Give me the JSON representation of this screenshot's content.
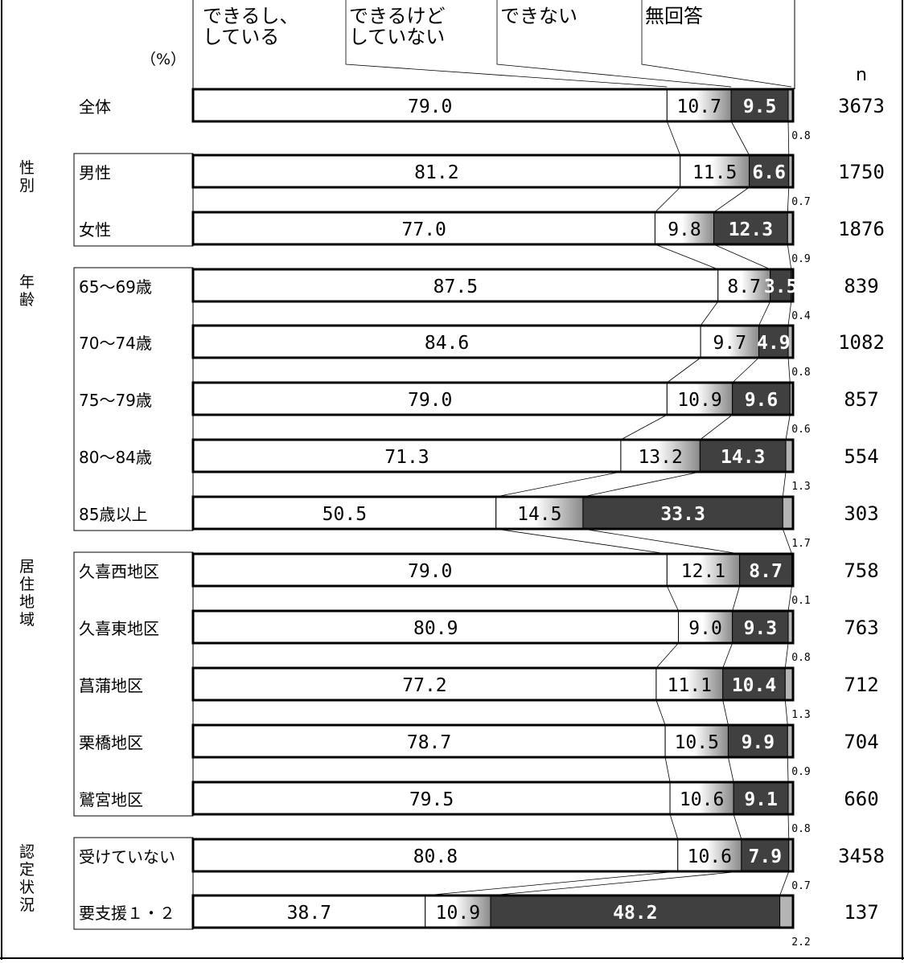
{
  "chart_data": {
    "type": "bar",
    "stacked": true,
    "orientation": "horizontal",
    "unit_label": "（%）",
    "n_header": "n",
    "series": [
      {
        "name": "できるし、\nしている",
        "color": "#ffffff"
      },
      {
        "name": "できるけど\nしていない",
        "color": "#c8c8c8"
      },
      {
        "name": "できない",
        "color": "#404040"
      },
      {
        "name": "無回答",
        "color": "#b4b4b4"
      }
    ],
    "groups": [
      {
        "label": "",
        "rows": [
          0
        ]
      },
      {
        "label": "性別",
        "rows": [
          1,
          2
        ]
      },
      {
        "label": "年齢",
        "rows": [
          3,
          4,
          5,
          6,
          7
        ]
      },
      {
        "label": "居住地域",
        "rows": [
          8,
          9,
          10,
          11,
          12
        ]
      },
      {
        "label": "認定状況",
        "rows": [
          13,
          14
        ]
      }
    ],
    "rows": [
      {
        "label": "全体",
        "n": "3673",
        "values": [
          79.0,
          10.7,
          9.5,
          0.8
        ],
        "value_labels": [
          "79.0",
          "10.7",
          "9.5",
          "0.8"
        ]
      },
      {
        "label": "男性",
        "n": "1750",
        "values": [
          81.2,
          11.5,
          6.6,
          0.7
        ],
        "value_labels": [
          "81.2",
          "11.5",
          "6.6",
          "0.7"
        ]
      },
      {
        "label": "女性",
        "n": "1876",
        "values": [
          77.0,
          9.8,
          12.3,
          0.9
        ],
        "value_labels": [
          "77.0",
          "9.8",
          "12.3",
          "0.9"
        ]
      },
      {
        "label": "65～69歳",
        "n": "839",
        "values": [
          87.5,
          8.7,
          3.5,
          0.4
        ],
        "value_labels": [
          "87.5",
          "8.7",
          "3.5",
          "0.4"
        ]
      },
      {
        "label": "70～74歳",
        "n": "1082",
        "values": [
          84.6,
          9.7,
          4.9,
          0.8
        ],
        "value_labels": [
          "84.6",
          "9.7",
          "4.9",
          "0.8"
        ]
      },
      {
        "label": "75～79歳",
        "n": "857",
        "values": [
          79.0,
          10.9,
          9.6,
          0.6
        ],
        "value_labels": [
          "79.0",
          "10.9",
          "9.6",
          "0.6"
        ]
      },
      {
        "label": "80～84歳",
        "n": "554",
        "values": [
          71.3,
          13.2,
          14.3,
          1.3
        ],
        "value_labels": [
          "71.3",
          "13.2",
          "14.3",
          "1.3"
        ]
      },
      {
        "label": "85歳以上",
        "n": "303",
        "values": [
          50.5,
          14.5,
          33.3,
          1.7
        ],
        "value_labels": [
          "50.5",
          "14.5",
          "33.3",
          "1.7"
        ]
      },
      {
        "label": "久喜西地区",
        "n": "758",
        "values": [
          79.0,
          12.1,
          8.7,
          0.1
        ],
        "value_labels": [
          "79.0",
          "12.1",
          "8.7",
          "0.1"
        ]
      },
      {
        "label": "久喜東地区",
        "n": "763",
        "values": [
          80.9,
          9.0,
          9.3,
          0.8
        ],
        "value_labels": [
          "80.9",
          "9.0",
          "9.3",
          "0.8"
        ]
      },
      {
        "label": "菖蒲地区",
        "n": "712",
        "values": [
          77.2,
          11.1,
          10.4,
          1.3
        ],
        "value_labels": [
          "77.2",
          "11.1",
          "10.4",
          "1.3"
        ]
      },
      {
        "label": "栗橋地区",
        "n": "704",
        "values": [
          78.7,
          10.5,
          9.9,
          0.9
        ],
        "value_labels": [
          "78.7",
          "10.5",
          "9.9",
          "0.9"
        ]
      },
      {
        "label": "鷲宮地区",
        "n": "660",
        "values": [
          79.5,
          10.6,
          9.1,
          0.8
        ],
        "value_labels": [
          "79.5",
          "10.6",
          "9.1",
          "0.8"
        ]
      },
      {
        "label": "受けていない",
        "n": "3458",
        "values": [
          80.8,
          10.6,
          7.9,
          0.7
        ],
        "value_labels": [
          "80.8",
          "10.6",
          "7.9",
          "0.7"
        ]
      },
      {
        "label": "要支援１・２",
        "n": "137",
        "values": [
          38.7,
          10.9,
          48.2,
          2.2
        ],
        "value_labels": [
          "38.7",
          "10.9",
          "48.2",
          "2.2"
        ]
      }
    ],
    "xlim": [
      0,
      100
    ],
    "grid": false,
    "legend_position": "top"
  }
}
